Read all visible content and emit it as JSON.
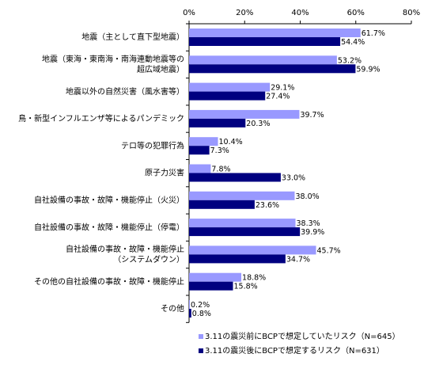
{
  "chart_data": {
    "type": "bar",
    "orientation": "horizontal",
    "xlim": [
      0,
      80
    ],
    "x_ticks": [
      "0%",
      "20%",
      "40%",
      "60%",
      "80%"
    ],
    "x_tick_values": [
      0,
      20,
      40,
      60,
      80
    ],
    "grid": false,
    "legend_position": "bottom-right",
    "categories": [
      [
        "地震（主として直下型地震）"
      ],
      [
        "地震（東海・東南海・南海連動地震等の",
        "超広域地震）"
      ],
      [
        "地震以外の自然災害（風水害等）"
      ],
      [
        "鳥・新型インフルエンザ等によるパンデミック"
      ],
      [
        "テロ等の犯罪行為"
      ],
      [
        "原子力災害"
      ],
      [
        "自社設備の事故・故障・機能停止（火災）"
      ],
      [
        "自社設備の事故・故障・機能停止（停電）"
      ],
      [
        "自社設備の事故・故障・機能停止",
        "（システムダウン）"
      ],
      [
        "その他の自社設備の事故・故障・機能停止"
      ],
      [
        "その他"
      ]
    ],
    "series": [
      {
        "name": "3.11の震災前にBCPで想定していたリスク（N=645）",
        "color": "#9999ff",
        "values": [
          61.7,
          53.2,
          29.1,
          39.7,
          10.4,
          7.8,
          38.0,
          38.3,
          45.7,
          18.8,
          0.2
        ],
        "labels": [
          "61.7%",
          "53.2%",
          "29.1%",
          "39.7%",
          "10.4%",
          "7.8%",
          "38.0%",
          "38.3%",
          "45.7%",
          "18.8%",
          "0.2%"
        ]
      },
      {
        "name": "3.11の震災後にBCPで想定するリスク（N=631）",
        "color": "#000080",
        "values": [
          54.4,
          59.9,
          27.4,
          20.3,
          7.3,
          33.0,
          23.6,
          39.9,
          34.7,
          15.8,
          0.8
        ],
        "labels": [
          "54.4%",
          "59.9%",
          "27.4%",
          "20.3%",
          "7.3%",
          "33.0%",
          "23.6%",
          "39.9%",
          "34.7%",
          "15.8%",
          "0.8%"
        ]
      }
    ]
  }
}
